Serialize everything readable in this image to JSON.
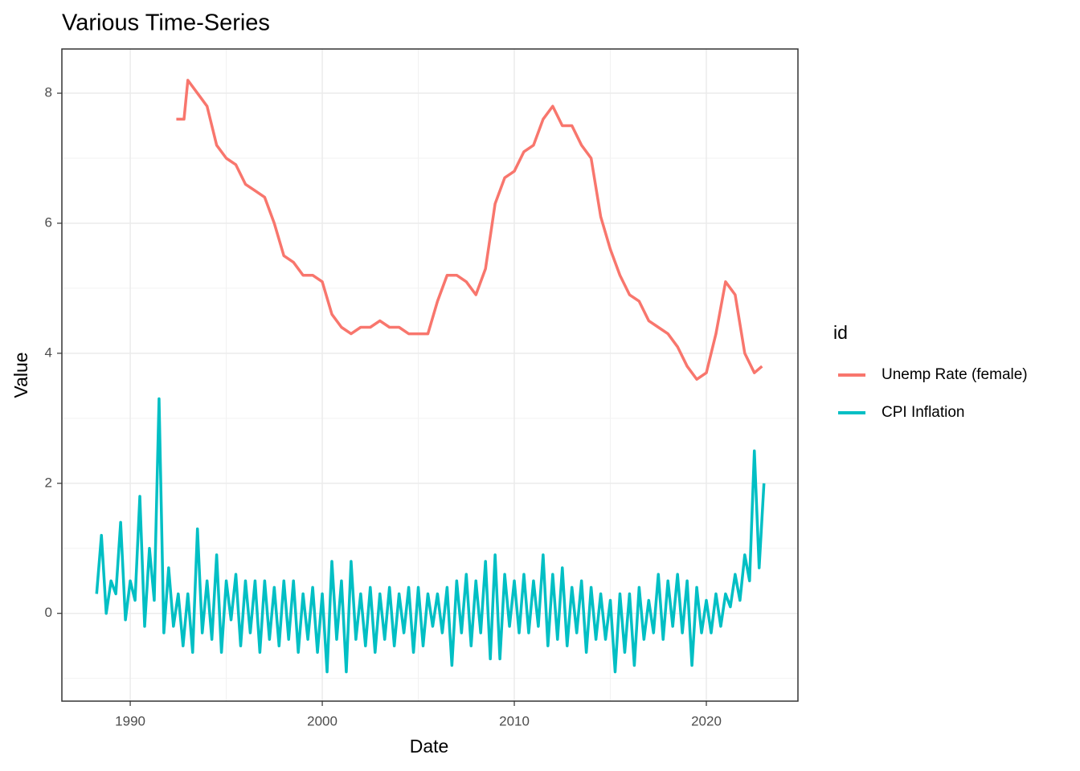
{
  "chart_data": {
    "type": "line",
    "title": "Various Time-Series",
    "x_label": "Date",
    "y_label": "Value",
    "xlim": [
      1986.44,
      2024.77
    ],
    "ylim": [
      -1.35,
      8.68
    ],
    "xticks": [
      1990,
      2000,
      2010,
      2020
    ],
    "yticks": [
      0,
      2,
      4,
      6,
      8
    ],
    "grid": true,
    "legend_title": "id",
    "legend_position": "right",
    "series": [
      {
        "name": "Unemp Rate (female)",
        "color": "#F8766D",
        "x": [
          1992.4,
          1992.8,
          1993,
          1993.5,
          1994,
          1994.5,
          1995,
          1995.5,
          1996,
          1996.5,
          1997,
          1997.5,
          1998,
          1998.5,
          1999,
          1999.5,
          2000,
          2000.5,
          2001,
          2001.5,
          2002,
          2002.5,
          2003,
          2003.5,
          2004,
          2004.5,
          2005,
          2005.5,
          2006,
          2006.5,
          2007,
          2007.5,
          2008,
          2008.5,
          2009,
          2009.5,
          2010,
          2010.5,
          2011,
          2011.5,
          2012,
          2012.5,
          2013,
          2013.5,
          2014,
          2014.5,
          2015,
          2015.5,
          2016,
          2016.5,
          2017,
          2017.5,
          2018,
          2018.5,
          2019,
          2019.5,
          2020,
          2020.5,
          2021,
          2021.5,
          2022,
          2022.5,
          2022.9
        ],
        "values": [
          7.6,
          7.6,
          8.2,
          8.0,
          7.8,
          7.2,
          7.0,
          6.9,
          6.6,
          6.5,
          6.4,
          6.0,
          5.5,
          5.4,
          5.2,
          5.2,
          5.1,
          4.6,
          4.4,
          4.3,
          4.4,
          4.4,
          4.5,
          4.4,
          4.4,
          4.3,
          4.3,
          4.3,
          4.8,
          5.2,
          5.2,
          5.1,
          4.9,
          5.3,
          6.3,
          6.7,
          6.8,
          7.1,
          7.2,
          7.6,
          7.8,
          7.5,
          7.5,
          7.2,
          7.0,
          6.1,
          5.6,
          5.2,
          4.9,
          4.8,
          4.5,
          4.4,
          4.3,
          4.1,
          3.8,
          3.6,
          3.7,
          4.3,
          5.1,
          4.9,
          4.0,
          3.7,
          3.8
        ]
      },
      {
        "name": "CPI Inflation",
        "color": "#00BFC4",
        "x": [
          1988.25,
          1988.5,
          1988.75,
          1989,
          1989.25,
          1989.5,
          1989.75,
          1990,
          1990.25,
          1990.5,
          1990.75,
          1991,
          1991.25,
          1991.5,
          1991.75,
          1992,
          1992.25,
          1992.5,
          1992.75,
          1993,
          1993.25,
          1993.5,
          1993.75,
          1994,
          1994.25,
          1994.5,
          1994.75,
          1995,
          1995.25,
          1995.5,
          1995.75,
          1996,
          1996.25,
          1996.5,
          1996.75,
          1997,
          1997.25,
          1997.5,
          1997.75,
          1998,
          1998.25,
          1998.5,
          1998.75,
          1999,
          1999.25,
          1999.5,
          1999.75,
          2000,
          2000.25,
          2000.5,
          2000.75,
          2001,
          2001.25,
          2001.5,
          2001.75,
          2002,
          2002.25,
          2002.5,
          2002.75,
          2003,
          2003.25,
          2003.5,
          2003.75,
          2004,
          2004.25,
          2004.5,
          2004.75,
          2005,
          2005.25,
          2005.5,
          2005.75,
          2006,
          2006.25,
          2006.5,
          2006.75,
          2007,
          2007.25,
          2007.5,
          2007.75,
          2008,
          2008.25,
          2008.5,
          2008.75,
          2009,
          2009.25,
          2009.5,
          2009.75,
          2010,
          2010.25,
          2010.5,
          2010.75,
          2011,
          2011.25,
          2011.5,
          2011.75,
          2012,
          2012.25,
          2012.5,
          2012.75,
          2013,
          2013.25,
          2013.5,
          2013.75,
          2014,
          2014.25,
          2014.5,
          2014.75,
          2015,
          2015.25,
          2015.5,
          2015.75,
          2016,
          2016.25,
          2016.5,
          2016.75,
          2017,
          2017.25,
          2017.5,
          2017.75,
          2018,
          2018.25,
          2018.5,
          2018.75,
          2019,
          2019.25,
          2019.5,
          2019.75,
          2020,
          2020.25,
          2020.5,
          2020.75,
          2021,
          2021.25,
          2021.5,
          2021.75,
          2022,
          2022.25,
          2022.5,
          2022.75,
          2023
        ],
        "values": [
          0.3,
          1.2,
          0.0,
          0.5,
          0.3,
          1.4,
          -0.1,
          0.5,
          0.2,
          1.8,
          -0.2,
          1.0,
          0.2,
          3.3,
          -0.3,
          0.7,
          -0.2,
          0.3,
          -0.5,
          0.3,
          -0.6,
          1.3,
          -0.3,
          0.5,
          -0.4,
          0.9,
          -0.6,
          0.5,
          -0.1,
          0.6,
          -0.5,
          0.5,
          -0.3,
          0.5,
          -0.6,
          0.5,
          -0.4,
          0.4,
          -0.5,
          0.5,
          -0.4,
          0.5,
          -0.6,
          0.3,
          -0.4,
          0.4,
          -0.6,
          0.3,
          -0.9,
          0.8,
          -0.4,
          0.5,
          -0.9,
          0.8,
          -0.4,
          0.3,
          -0.5,
          0.4,
          -0.6,
          0.3,
          -0.4,
          0.4,
          -0.5,
          0.3,
          -0.3,
          0.4,
          -0.6,
          0.4,
          -0.5,
          0.3,
          -0.2,
          0.3,
          -0.3,
          0.4,
          -0.8,
          0.5,
          -0.3,
          0.6,
          -0.5,
          0.5,
          -0.3,
          0.8,
          -0.7,
          0.9,
          -0.7,
          0.6,
          -0.2,
          0.5,
          -0.3,
          0.6,
          -0.3,
          0.5,
          -0.2,
          0.9,
          -0.5,
          0.6,
          -0.4,
          0.7,
          -0.5,
          0.4,
          -0.3,
          0.5,
          -0.6,
          0.4,
          -0.4,
          0.3,
          -0.4,
          0.2,
          -0.9,
          0.3,
          -0.6,
          0.3,
          -0.8,
          0.4,
          -0.4,
          0.2,
          -0.3,
          0.6,
          -0.4,
          0.5,
          -0.2,
          0.6,
          -0.3,
          0.5,
          -0.8,
          0.4,
          -0.3,
          0.2,
          -0.3,
          0.3,
          -0.2,
          0.3,
          0.1,
          0.6,
          0.2,
          0.9,
          0.5,
          2.5,
          0.7,
          2.0
        ]
      }
    ]
  }
}
